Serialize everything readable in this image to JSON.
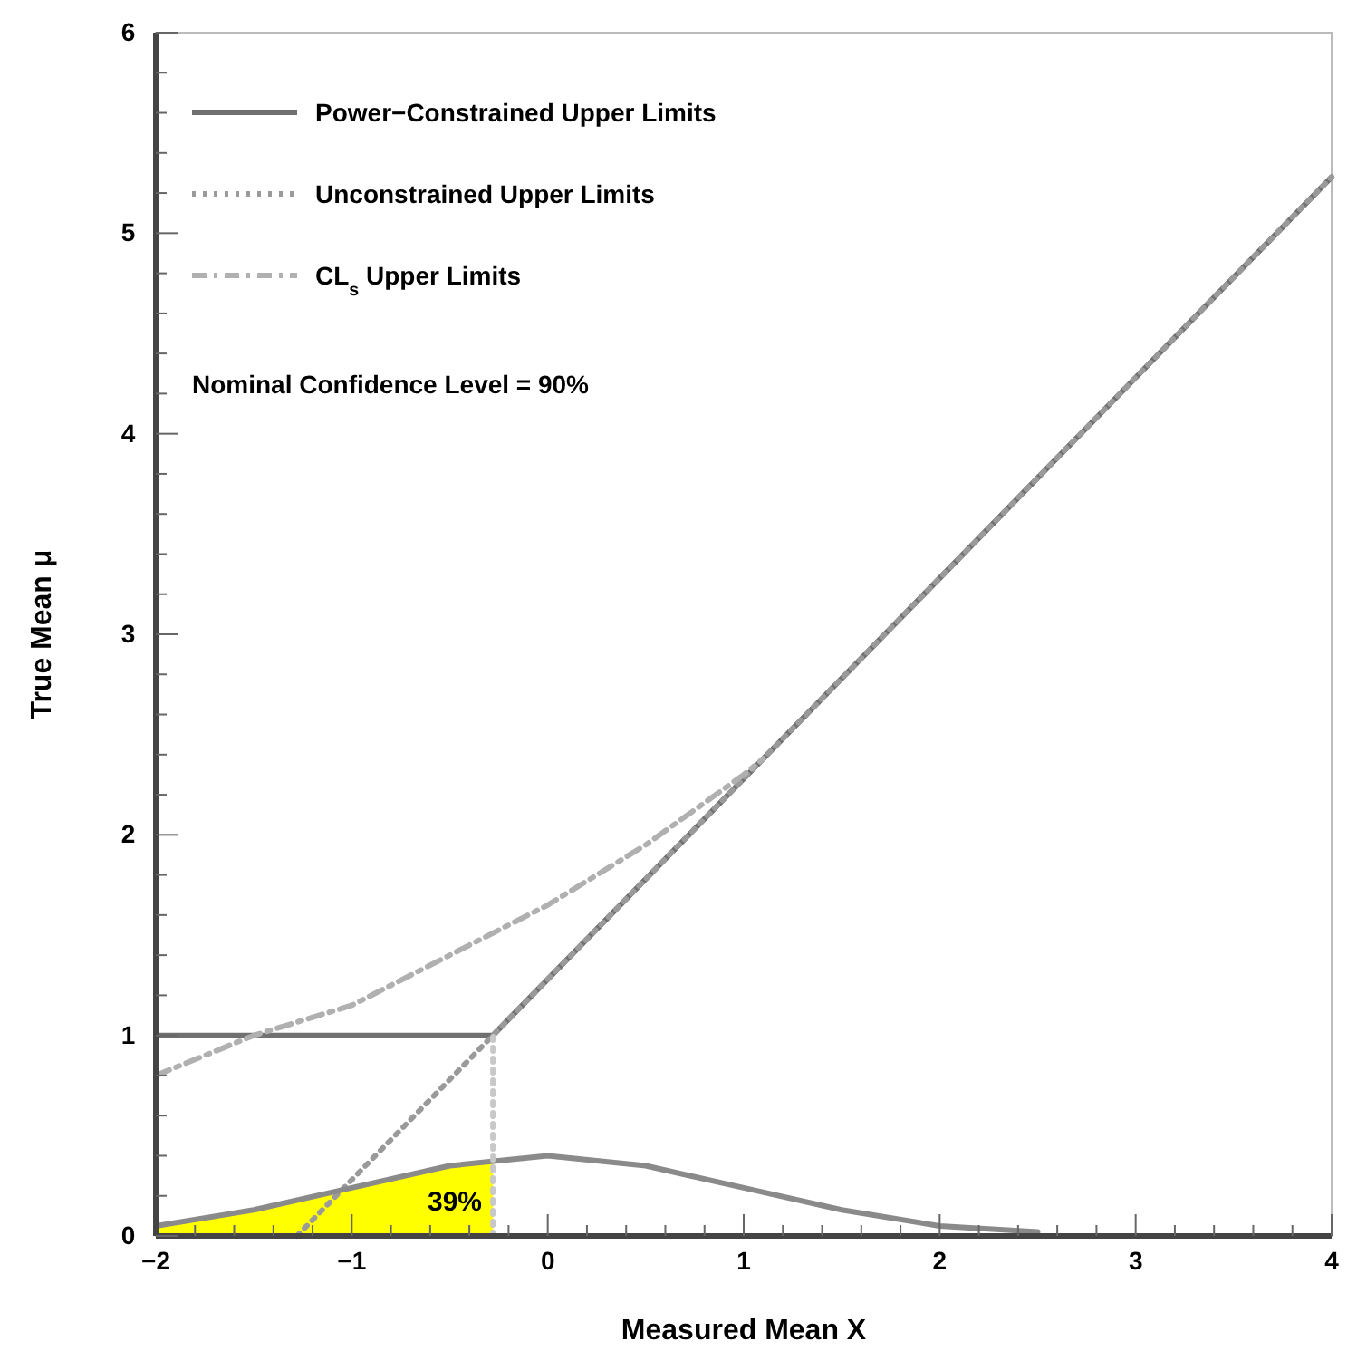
{
  "chart_data": {
    "type": "line",
    "xlabel": "Measured Mean X",
    "ylabel": "True Mean μ",
    "xlim": [
      -2,
      4
    ],
    "ylim": [
      0,
      6
    ],
    "xticks": [
      -2,
      {
        "value": -1.8,
        "label": null
      },
      {
        "value": -1.6,
        "label": null
      },
      {
        "value": -1.4,
        "label": null
      },
      {
        "value": -1.2,
        "label": null
      },
      -1,
      {
        "value": -0.8,
        "label": null
      },
      {
        "value": -0.6,
        "label": null
      },
      {
        "value": -0.4,
        "label": null
      },
      {
        "value": -0.2,
        "label": null
      },
      0,
      {
        "value": 0.2,
        "label": null
      },
      {
        "value": 0.4,
        "label": null
      },
      {
        "value": 0.6,
        "label": null
      },
      {
        "value": 0.8,
        "label": null
      },
      1,
      {
        "value": 1.2,
        "label": null
      },
      {
        "value": 1.4,
        "label": null
      },
      {
        "value": 1.6,
        "label": null
      },
      {
        "value": 1.8,
        "label": null
      },
      2,
      {
        "value": 2.2,
        "label": null
      },
      {
        "value": 2.4,
        "label": null
      },
      {
        "value": 2.6,
        "label": null
      },
      {
        "value": 2.8,
        "label": null
      },
      3,
      {
        "value": 3.2,
        "label": null
      },
      {
        "value": 3.4,
        "label": null
      },
      {
        "value": 3.6,
        "label": null
      },
      {
        "value": 3.8,
        "label": null
      },
      4
    ],
    "yticks": [
      0,
      {
        "value": 0.2,
        "label": null
      },
      {
        "value": 0.4,
        "label": null
      },
      {
        "value": 0.6,
        "label": null
      },
      {
        "value": 0.8,
        "label": null
      },
      1,
      {
        "value": 1.2,
        "label": null
      },
      {
        "value": 1.4,
        "label": null
      },
      {
        "value": 1.6,
        "label": null
      },
      {
        "value": 1.8,
        "label": null
      },
      2,
      {
        "value": 2.2,
        "label": null
      },
      {
        "value": 2.4,
        "label": null
      },
      {
        "value": 2.6,
        "label": null
      },
      {
        "value": 2.8,
        "label": null
      },
      3,
      {
        "value": 3.2,
        "label": null
      },
      {
        "value": 3.4,
        "label": null
      },
      {
        "value": 3.6,
        "label": null
      },
      {
        "value": 3.8,
        "label": null
      },
      4,
      {
        "value": 4.2,
        "label": null
      },
      {
        "value": 4.4,
        "label": null
      },
      {
        "value": 4.6,
        "label": null
      },
      {
        "value": 4.8,
        "label": null
      },
      5,
      {
        "value": 5.2,
        "label": null
      },
      {
        "value": 5.4,
        "label": null
      },
      {
        "value": 5.6,
        "label": null
      },
      {
        "value": 5.8,
        "label": null
      },
      6
    ],
    "grid": false,
    "legend": "top left",
    "marker": "none",
    "series": [
      {
        "type": "area",
        "color": "#ffff00",
        "x": [
          -2,
          -1.5,
          -1,
          -0.5,
          -0.28
        ],
        "values": [
          0.05,
          0.13,
          0.24,
          0.35,
          0.38
        ]
      },
      {
        "name": "Power−Constrained Upper Limits",
        "color": "#707070",
        "line_style": "solid",
        "x": [
          -2,
          -0.28,
          4
        ],
        "values": [
          1,
          1,
          5.28
        ]
      },
      {
        "name": "Unconstrained Upper Limits",
        "color": "#9a9a9a",
        "line_style": "dotted",
        "x": [
          -1.28,
          4
        ],
        "values": [
          0,
          5.28
        ]
      },
      {
        "name": "CL$_{s}$ Upper Limits",
        "color": "#b0b0b0",
        "line_style": "dashed",
        "x": [
          -2,
          -1.5,
          -1,
          -0.5,
          0,
          0.5,
          1,
          1.1
        ],
        "values": [
          0.8,
          1,
          1.15,
          1.4,
          1.65,
          1.95,
          2.3,
          2.38
        ]
      },
      {
        "color": "#8a8a8a",
        "line_style": "solid",
        "x": [
          -2,
          -1.5,
          -1,
          -0.5,
          0,
          0.5,
          1,
          1.5,
          2,
          2.5
        ],
        "values": [
          0.05,
          0.13,
          0.24,
          0.35,
          0.4,
          0.35,
          0.24,
          0.13,
          0.05,
          0.02
        ]
      },
      {
        "color": "#c8c8c8",
        "line_style": "dotted",
        "x": [
          -0.28,
          -0.28
        ],
        "values": [
          0,
          1
        ]
      }
    ],
    "annotations": [
      "Nominal Confidence Level = 90%",
      "39%"
    ]
  }
}
